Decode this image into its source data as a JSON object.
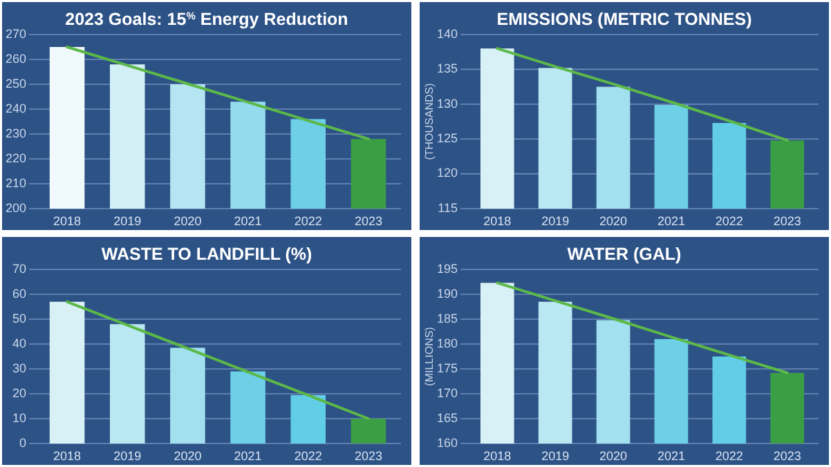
{
  "chart_data": [
    {
      "type": "bar",
      "title": "2023 Goals: 15$^{%}$ Energy Reduction",
      "categories": [
        "2018",
        "2019",
        "2020",
        "2021",
        "2022",
        "2023"
      ],
      "ylim": [
        200,
        270
      ],
      "yticks": [
        200,
        210,
        220,
        230,
        240,
        250,
        260,
        270
      ],
      "grid": "y",
      "series": [
        {
          "colors": [
            "#f0f9fc",
            "#d2eff6",
            "#b4e5f1",
            "#93dbed",
            "#6dd0e7",
            "#3a9e44"
          ],
          "values": [
            265,
            258,
            250,
            243,
            236,
            228
          ]
        },
        {
          "type": "line",
          "color": "#5cb848",
          "values": [
            265,
            257.6,
            250.2,
            242.8,
            235.4,
            228
          ]
        }
      ]
    },
    {
      "type": "bar",
      "title": "EMISSIONS (METRIC TONNES)",
      "ylabel": "(THOUSANDS)",
      "categories": [
        "2018",
        "2019",
        "2020",
        "2021",
        "2022",
        "2023"
      ],
      "ylim": [
        115,
        140
      ],
      "yticks": [
        115,
        120,
        125,
        130,
        135,
        140
      ],
      "grid": "y",
      "series": [
        {
          "colors": [
            "#d8f1f7",
            "#b9e7f2",
            "#a2e0ef",
            "#6dd0e7",
            "#62cde6",
            "#3a9e44"
          ],
          "values": [
            138,
            135.2,
            132.5,
            129.9,
            127.3,
            124.8
          ]
        },
        {
          "type": "line",
          "color": "#5cb848",
          "values": [
            138,
            135.4,
            132.9,
            130.3,
            127.6,
            124.8
          ]
        }
      ]
    },
    {
      "type": "bar",
      "title": "WASTE TO LANDFILL (%)",
      "categories": [
        "2018",
        "2019",
        "2020",
        "2021",
        "2022",
        "2023"
      ],
      "ylim": [
        0,
        70
      ],
      "yticks": [
        0,
        10,
        20,
        30,
        40,
        50,
        60,
        70
      ],
      "grid": "y",
      "series": [
        {
          "colors": [
            "#d8f1f7",
            "#b9e7f2",
            "#a2e0ef",
            "#6dd0e7",
            "#62cde6",
            "#3a9e44"
          ],
          "values": [
            57,
            48,
            38.5,
            29,
            19.5,
            10
          ]
        },
        {
          "type": "line",
          "color": "#5cb848",
          "values": [
            57,
            47.6,
            38.2,
            28.8,
            19.4,
            10
          ]
        }
      ]
    },
    {
      "type": "bar",
      "title": "WATER (GAL)",
      "ylabel": "(MILLIONS)",
      "categories": [
        "2018",
        "2019",
        "2020",
        "2021",
        "2022",
        "2023"
      ],
      "ylim": [
        160,
        195
      ],
      "yticks": [
        160,
        165,
        170,
        175,
        180,
        185,
        190,
        195
      ],
      "grid": "y",
      "series": [
        {
          "colors": [
            "#d8f1f7",
            "#b9e7f2",
            "#a2e0ef",
            "#6dd0e7",
            "#62cde6",
            "#3a9e44"
          ],
          "values": [
            192.3,
            188.5,
            184.8,
            181,
            177.5,
            174.2
          ]
        },
        {
          "type": "line",
          "color": "#5cb848",
          "values": [
            192.3,
            188.7,
            185.1,
            181.4,
            177.8,
            174.2
          ]
        }
      ]
    }
  ]
}
